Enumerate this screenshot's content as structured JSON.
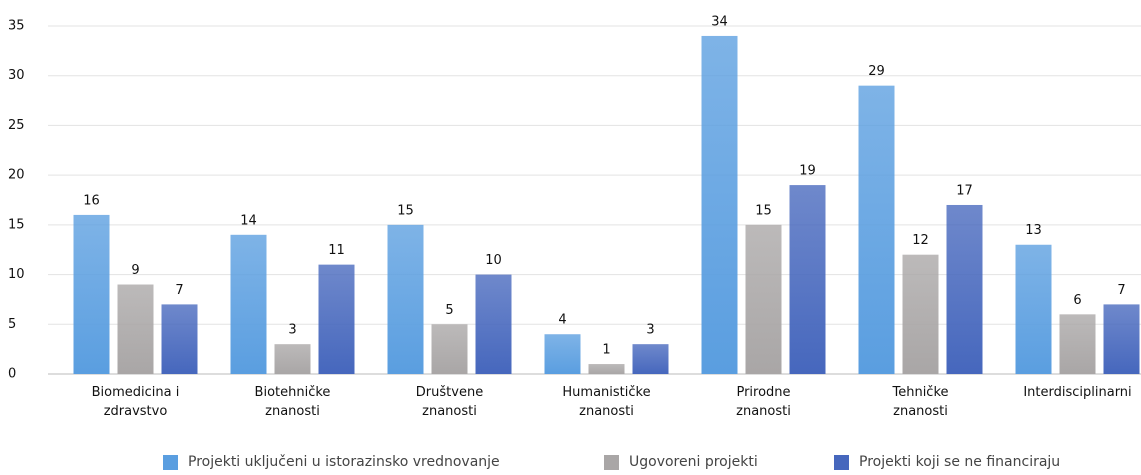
{
  "chart_data": {
    "type": "bar",
    "categories": [
      "Biomedicina i\nzdravstvo",
      "Biotehničke\nznanosti",
      "Društvene\nznanosti",
      "Humanističke\nznanosti",
      "Prirodne\nznanosti",
      "Tehničke\nznanosti",
      "Interdisciplinarni"
    ],
    "series": [
      {
        "name": "Projekti uključeni u istorazinsko vrednovanje",
        "color": "#5a9ee0",
        "values": [
          16,
          14,
          15,
          4,
          34,
          29,
          13
        ]
      },
      {
        "name": "Ugovoreni projekti",
        "color": "#a9a6a6",
        "values": [
          9,
          3,
          5,
          1,
          15,
          12,
          6
        ]
      },
      {
        "name": "Projekti koji se ne financiraju",
        "color": "#4667bd",
        "values": [
          7,
          11,
          10,
          3,
          19,
          17,
          7
        ]
      }
    ],
    "ylim": [
      0,
      35
    ],
    "yticks": [
      0,
      5,
      10,
      15,
      20,
      25,
      30,
      35
    ],
    "grid": true,
    "legend": "bottom"
  }
}
